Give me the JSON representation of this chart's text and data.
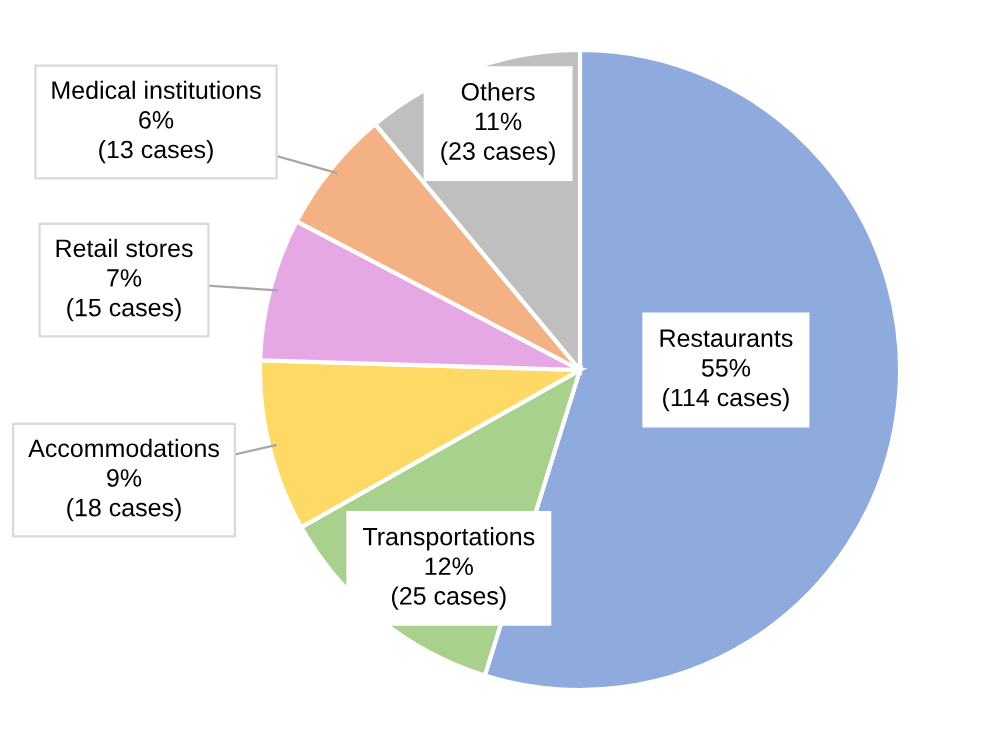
{
  "chart_data": {
    "type": "pie",
    "categories": [
      "Restaurants",
      "Transportations",
      "Accommodations",
      "Retail stores",
      "Medical institutions",
      "Others"
    ],
    "values": [
      114,
      25,
      18,
      15,
      13,
      23
    ],
    "value_labels": [
      "55%\n(114 cases)",
      "12%\n(25 cases)",
      "9%\n(18 cases)",
      "7%\n(15 cases)",
      "6%\n(13 cases)",
      "11%\n(23 cases)"
    ],
    "colors": [
      "#8faadc",
      "#a9d18e",
      "#ffd966",
      "#e6a8e4",
      "#f4b183",
      "#bfbfbf"
    ],
    "legend": false
  }
}
